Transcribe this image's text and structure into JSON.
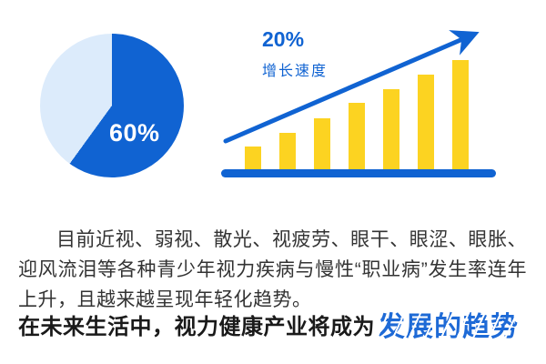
{
  "colors": {
    "primary_blue": "#1063d2",
    "light_blue": "#dcebfb",
    "bar_yellow": "#fcd321",
    "body_text": "#333333",
    "headline_text": "#1a1a1a",
    "highlight_blue": "#1e6ad6"
  },
  "pie_section": {
    "share_label": "60%"
  },
  "growth_section": {
    "rate_label": "20%",
    "rate_caption": "增长速度"
  },
  "paragraph": {
    "text": "目前近视、弱视、散光、视疲劳、眼干、眼涩、眼胀、迎风流泪等各种青少年视力疾病与慢性“职业病”发生率连年上升，且越来越呈现年轻化趋势。"
  },
  "headline": {
    "prefix": "在未来生活中，视力健康产业将成为",
    "highlight": "发展的趋势"
  },
  "chart_data": [
    {
      "type": "pie",
      "title": "",
      "direction": "clockwise",
      "start_angle_deg": 0,
      "slices": [
        {
          "label": "60%",
          "value": 60,
          "color": "#1063d2"
        },
        {
          "label": "",
          "value": 40,
          "color": "#dcebfb"
        }
      ],
      "annotations": [
        "60%"
      ]
    },
    {
      "type": "bar",
      "title": "",
      "xlabel": "",
      "ylabel": "",
      "categories": [
        "",
        "",
        "",
        "",
        "",
        "",
        ""
      ],
      "values": [
        25,
        40,
        56,
        73,
        88,
        104,
        120
      ],
      "unit": "relative-height-px",
      "bar_color": "#fcd321",
      "baseline_color": "#1063d2",
      "grid": false,
      "trend_arrow": {
        "present": true,
        "color": "#1063d2",
        "label": "20%",
        "caption": "增长速度"
      }
    }
  ]
}
